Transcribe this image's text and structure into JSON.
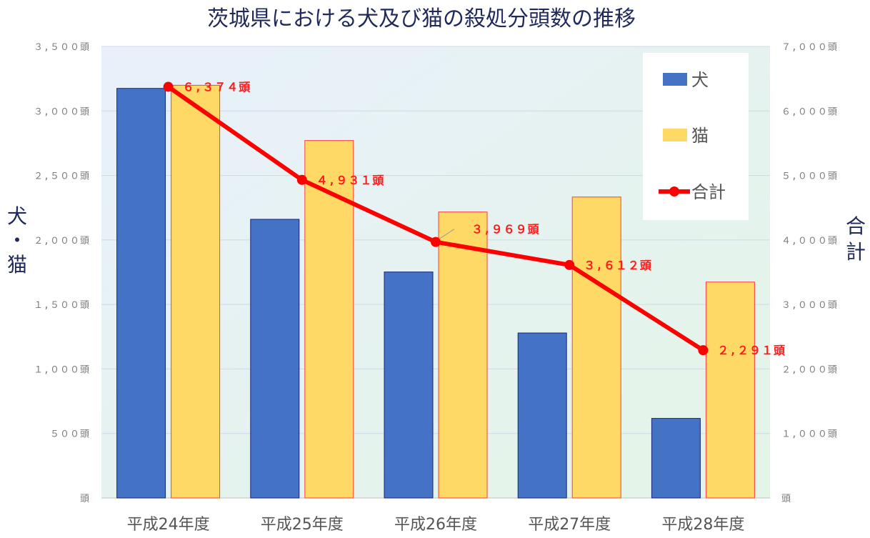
{
  "chart_data": {
    "type": "bar+line",
    "title": "茨城県における犬及び猫の殺処分頭数の推移",
    "categories": [
      "平成24年度",
      "平成25年度",
      "平成26年度",
      "平成27年度",
      "平成28年度"
    ],
    "series": [
      {
        "name": "犬",
        "type": "bar",
        "axis": "left",
        "color": "#4472c4",
        "values": [
          3175,
          2160,
          1752,
          1279,
          617
        ]
      },
      {
        "name": "猫",
        "type": "bar",
        "axis": "left",
        "color": "#ffd966",
        "values": [
          3199,
          2771,
          2217,
          2333,
          1674
        ]
      },
      {
        "name": "合計",
        "type": "line",
        "axis": "right",
        "color": "#ff0000",
        "values": [
          6374,
          4931,
          3969,
          3612,
          2291
        ],
        "labels": [
          "６,３７４頭",
          "４,９３１頭",
          "３,９６９頭",
          "３,６１２頭",
          "２,２９１頭"
        ]
      }
    ],
    "ylabel_left": "犬・猫",
    "ylabel_right": "合計",
    "ylim_left": [
      0,
      3500
    ],
    "ylim_right": [
      0,
      7000
    ],
    "yticks_left": [
      0,
      500,
      1000,
      1500,
      2000,
      2500,
      3000,
      3500
    ],
    "yticks_right": [
      0,
      1000,
      2000,
      3000,
      4000,
      5000,
      6000,
      7000
    ],
    "ytick_labels_left": [
      "頭",
      "５００頭",
      "１,０００頭",
      "１,５００頭",
      "２,０００頭",
      "２,５００頭",
      "３,０００頭",
      "３,５００頭"
    ],
    "ytick_labels_right": [
      "頭",
      "１,０００頭",
      "２,０００頭",
      "３,０００頭",
      "４,０００頭",
      "５,０００頭",
      "６,０００頭",
      "７,０００頭"
    ],
    "grid": true,
    "legend": {
      "position": "top-right",
      "items": [
        "犬",
        "猫",
        "合計"
      ]
    }
  }
}
